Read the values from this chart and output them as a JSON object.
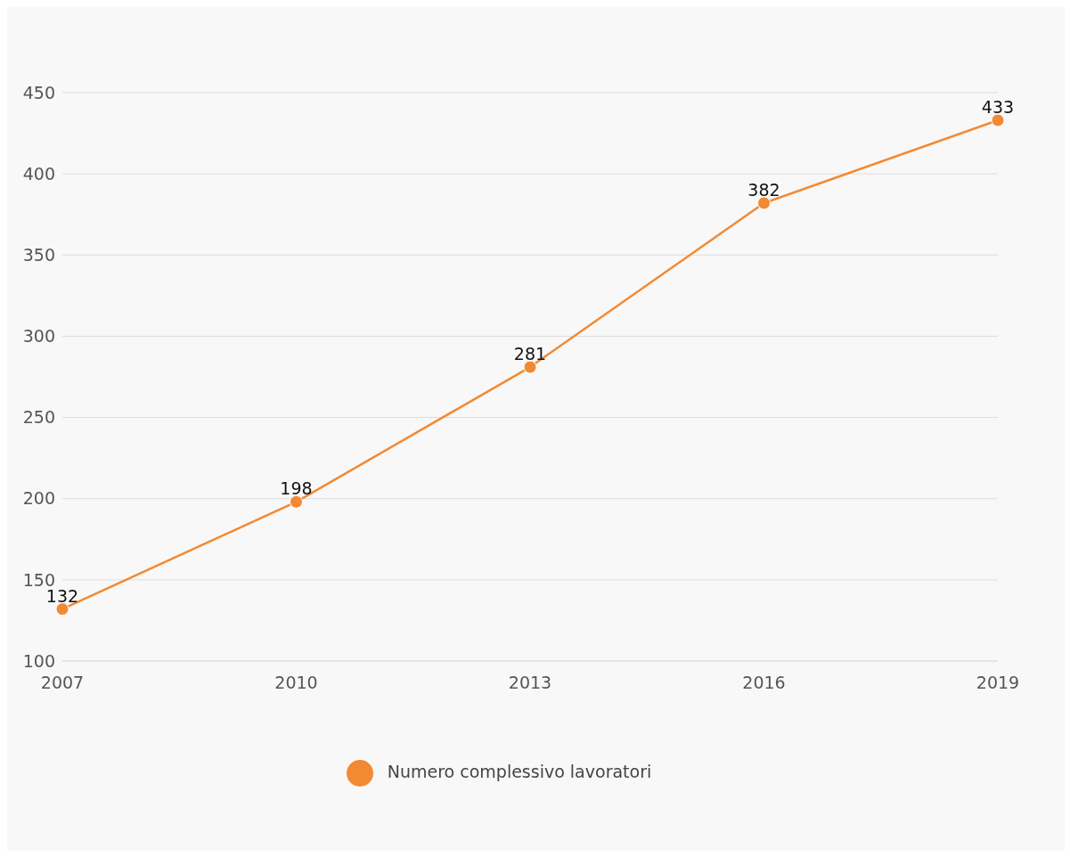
{
  "chart_data": {
    "type": "line",
    "categories": [
      "2007",
      "2010",
      "2013",
      "2016",
      "2019"
    ],
    "series": [
      {
        "name": "Numero complessivo lavoratori",
        "color": "#f28a33",
        "values": [
          132,
          198,
          281,
          382,
          433
        ]
      }
    ],
    "ylim": [
      100,
      450
    ],
    "yticks": [
      100,
      150,
      200,
      250,
      300,
      350,
      400,
      450
    ],
    "grid": "y",
    "legend": "bottom",
    "marker": "circle",
    "data_labels": true
  }
}
